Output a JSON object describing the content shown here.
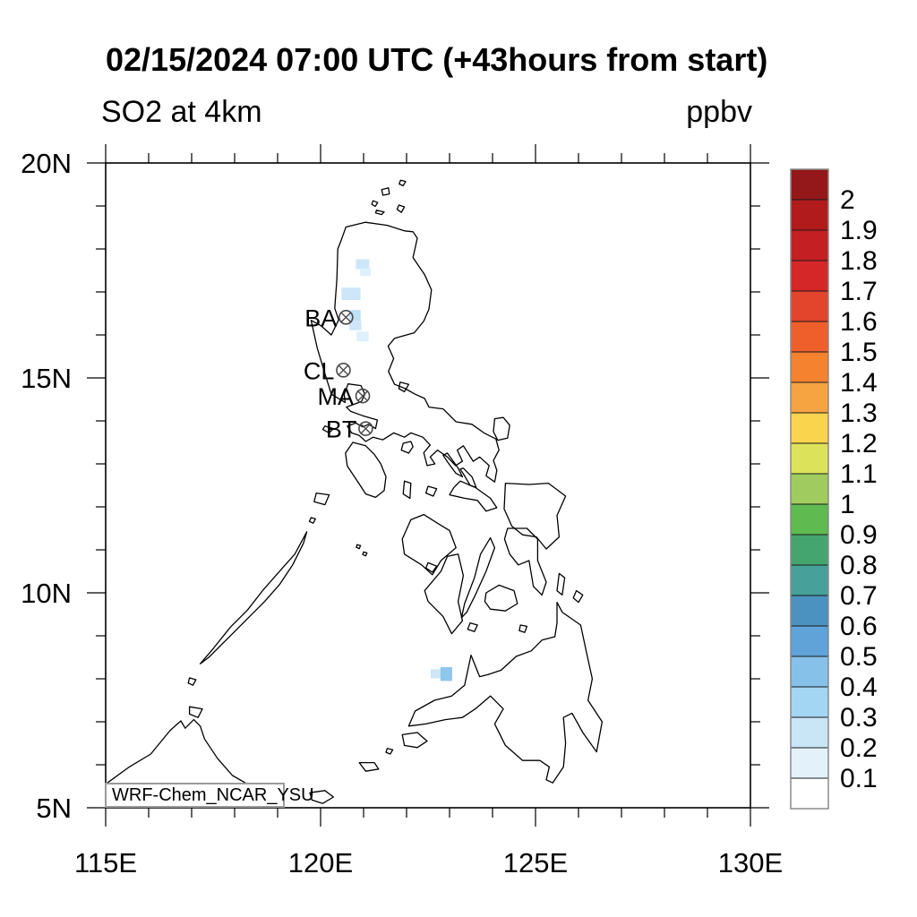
{
  "header": {
    "title": "02/15/2024 07:00 UTC (+43hours from start)",
    "field": "SO2 at 4km",
    "units": "ppbv",
    "model": "WRF-Chem_NCAR_YSU"
  },
  "chart_data": {
    "type": "heatmap",
    "title": "02/15/2024 07:00 UTC (+43hours from start)",
    "subtitle_left": "SO2 at 4km",
    "subtitle_right": "ppbv",
    "annotation": "WRF-Chem_NCAR_YSU",
    "extent": {
      "lon_min": 115,
      "lon_max": 130,
      "lat_min": 5,
      "lat_max": 20
    },
    "x_axis": {
      "major_ticks": [
        115,
        120,
        125,
        130
      ],
      "major_labels": [
        "115E",
        "120E",
        "125E",
        "130E"
      ],
      "minor_tick_step": 1
    },
    "y_axis": {
      "major_ticks": [
        5,
        10,
        15,
        20
      ],
      "major_labels": [
        "5N",
        "10N",
        "15N",
        "20N"
      ],
      "minor_tick_step": 1
    },
    "colorbar": {
      "units": "ppbv",
      "labels_bottom_to_top": [
        "0.1",
        "0.2",
        "0.3",
        "0.4",
        "0.5",
        "0.6",
        "0.7",
        "0.8",
        "0.9",
        "1",
        "1.1",
        "1.2",
        "1.3",
        "1.4",
        "1.5",
        "1.6",
        "1.7",
        "1.8",
        "1.9",
        "2"
      ],
      "colors_bottom_to_top": [
        "#ffffff",
        "#e3f1fb",
        "#c9e6f7",
        "#a3d6f3",
        "#86c1e9",
        "#5fa3d8",
        "#4c92c0",
        "#47a09a",
        "#45a56e",
        "#5fba50",
        "#a0cc5f",
        "#dce35b",
        "#fbd44e",
        "#f6a342",
        "#f5822f",
        "#ee5f2b",
        "#e2452c",
        "#d62728",
        "#c42023",
        "#b21b1b",
        "#941719"
      ]
    },
    "stations": [
      {
        "id": "BA",
        "lon": 120.59,
        "lat": 16.41,
        "marker": "circle-cross"
      },
      {
        "id": "CL",
        "lon": 120.53,
        "lat": 15.18,
        "marker": "circle-cross"
      },
      {
        "id": "MA",
        "lon": 120.98,
        "lat": 14.58,
        "marker": "circle-cross"
      },
      {
        "id": "BT",
        "lon": 121.05,
        "lat": 13.82,
        "marker": "circle-cross"
      }
    ],
    "so2_cells": [
      {
        "lon": 120.82,
        "lat": 17.76,
        "dlon": 0.31,
        "dlat": 0.23,
        "level": "0.2",
        "color": "#cde6f8"
      },
      {
        "lon": 120.92,
        "lat": 17.55,
        "dlon": 0.25,
        "dlat": 0.18,
        "level": "0.1",
        "color": "#def0fb"
      },
      {
        "lon": 120.49,
        "lat": 17.1,
        "dlon": 0.44,
        "dlat": 0.29,
        "level": "0.2",
        "color": "#cde6f8"
      },
      {
        "lon": 120.67,
        "lat": 16.58,
        "dlon": 0.26,
        "dlat": 0.25,
        "level": "0.3",
        "color": "#bfe0f5"
      },
      {
        "lon": 120.67,
        "lat": 16.33,
        "dlon": 0.28,
        "dlat": 0.22,
        "level": "0.2",
        "color": "#cde6f8"
      },
      {
        "lon": 120.84,
        "lat": 16.08,
        "dlon": 0.28,
        "dlat": 0.23,
        "level": "0.1",
        "color": "#def0fb"
      },
      {
        "lon": 122.56,
        "lat": 8.22,
        "dlon": 0.25,
        "dlat": 0.21,
        "level": "0.2",
        "color": "#cde6f8"
      },
      {
        "lon": 122.79,
        "lat": 8.27,
        "dlon": 0.27,
        "dlat": 0.32,
        "level": "0.4",
        "color": "#8fc6ec"
      }
    ]
  }
}
